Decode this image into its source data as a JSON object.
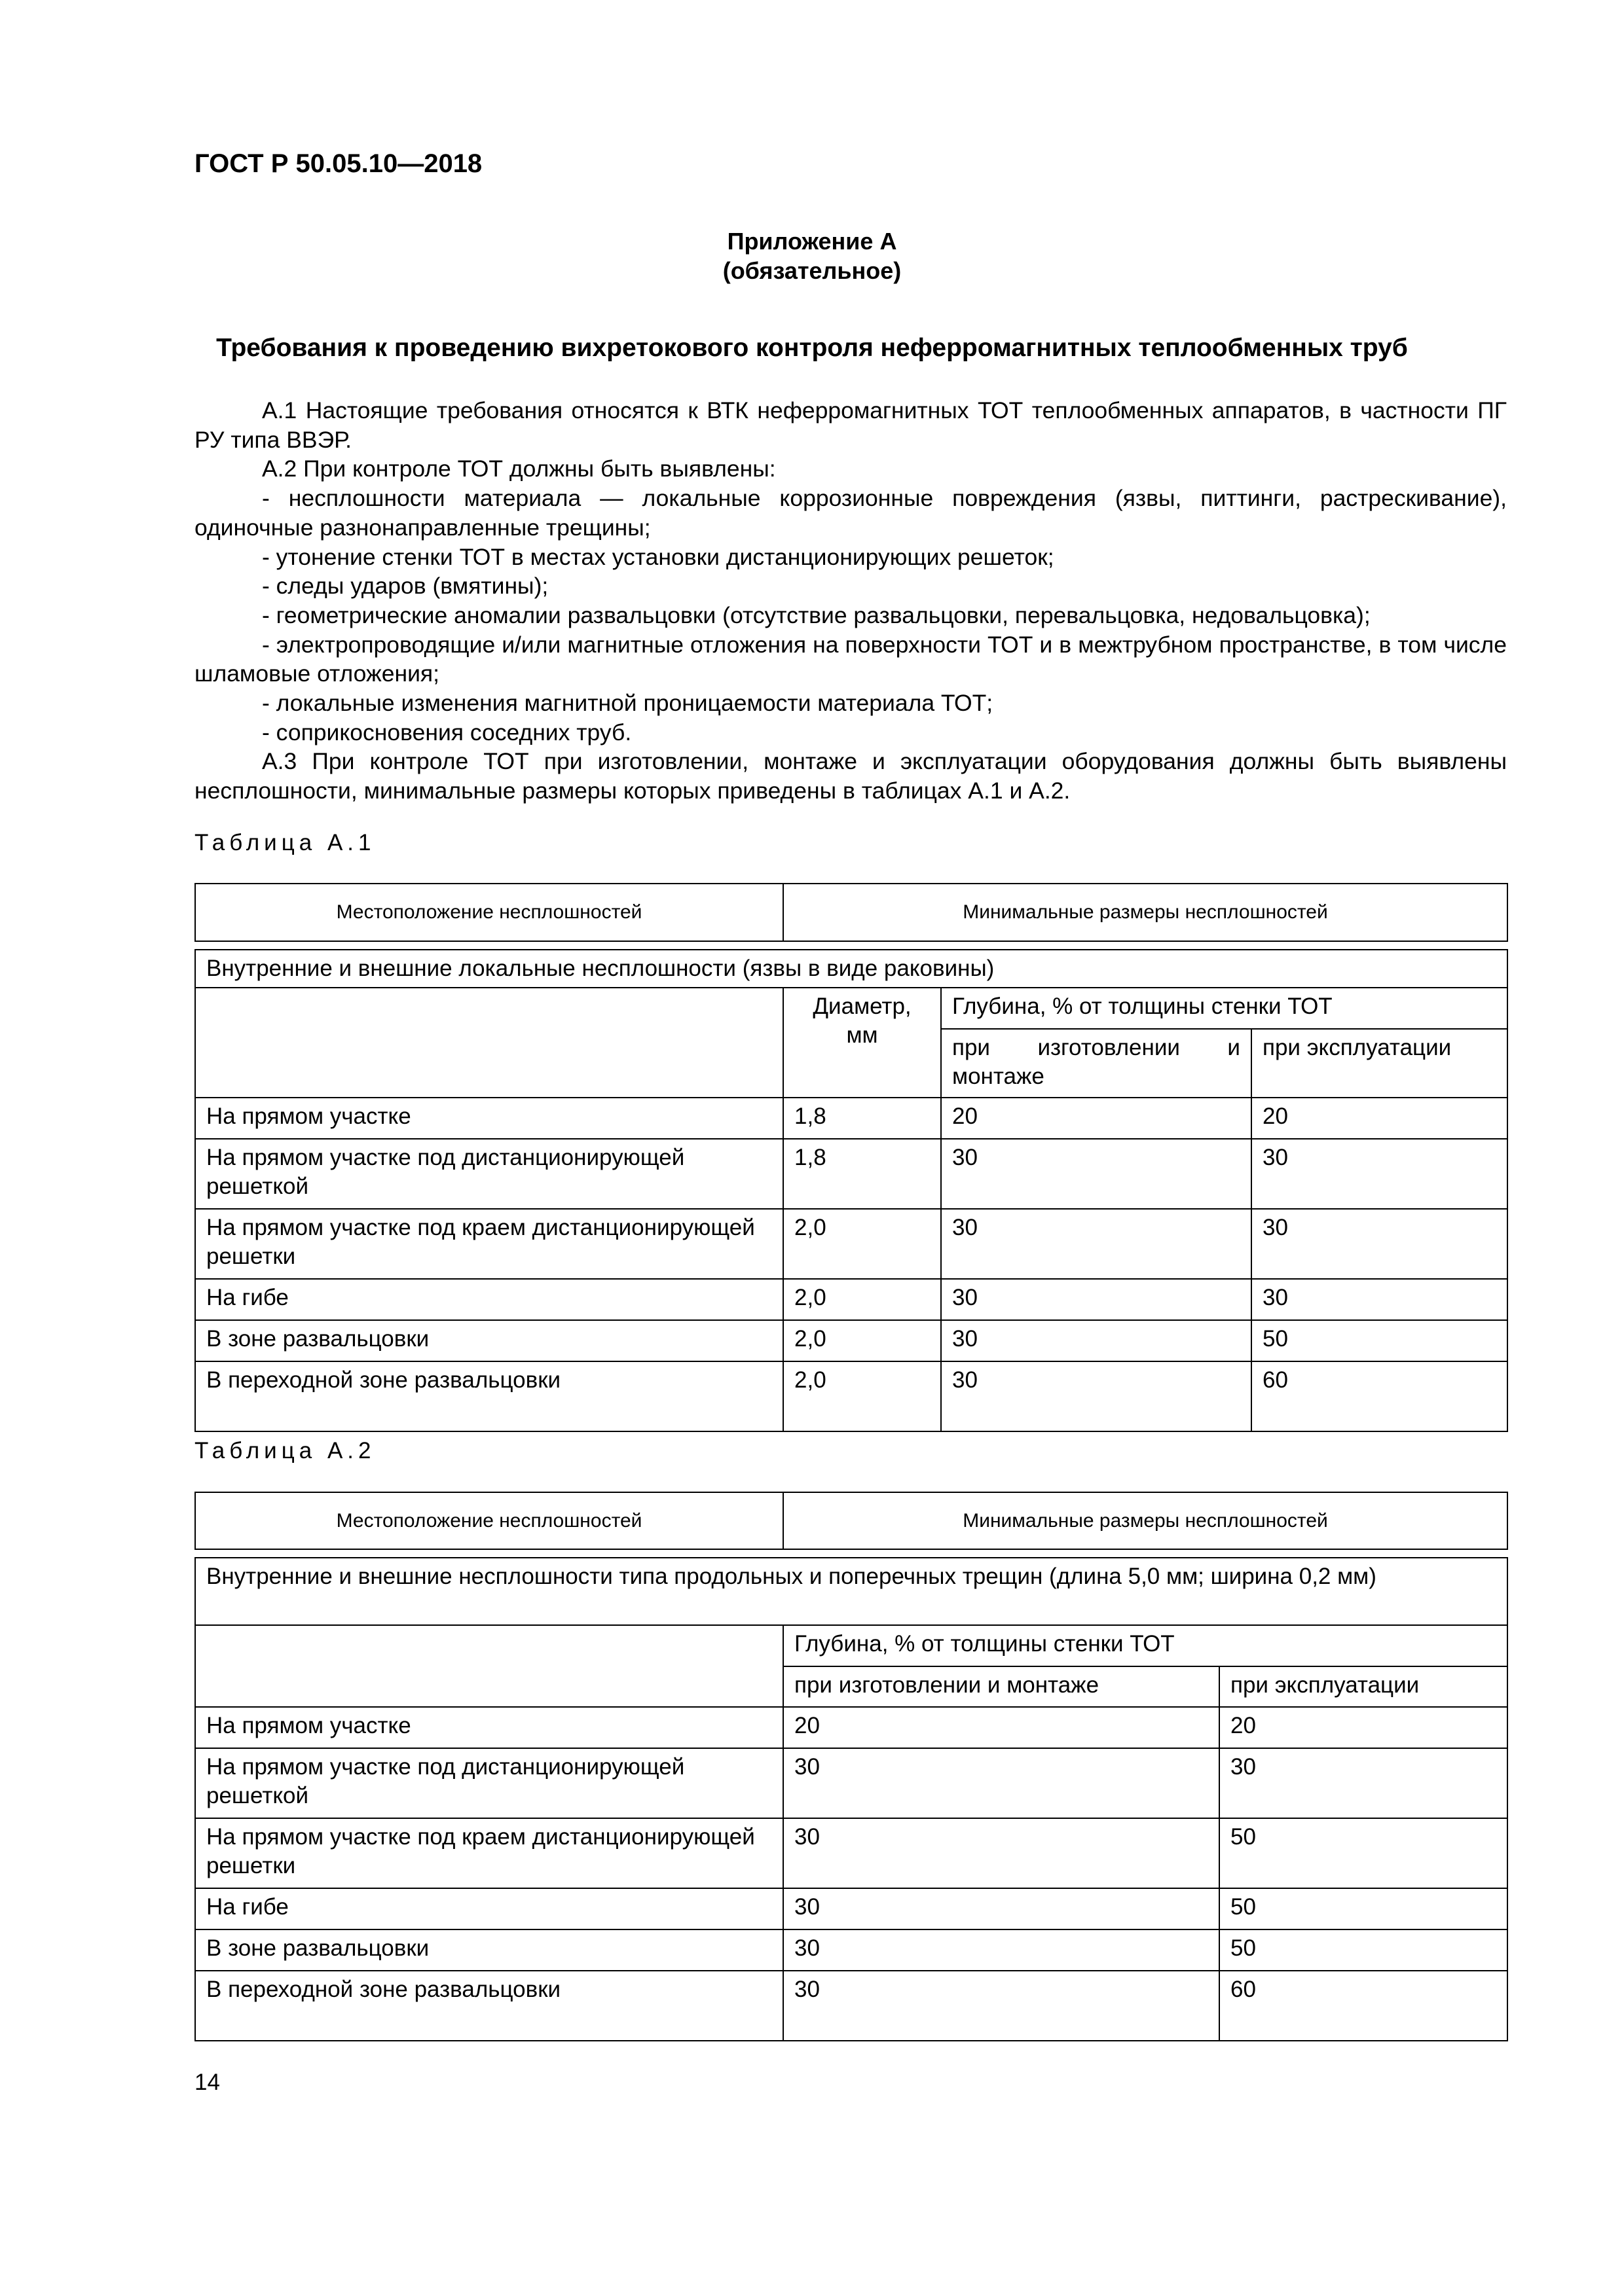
{
  "header": {
    "doc_id": "ГОСТ Р 50.05.10—2018"
  },
  "appendix": {
    "label": "Приложение А",
    "status": "(обязательное)"
  },
  "title": "Требования к проведению вихретокового контроля неферромагнитных теплообменных труб",
  "paragraphs": [
    "А.1 Настоящие требования относятся к ВТК неферромагнитных ТОТ теплообменных аппаратов, в частности ПГ РУ типа ВВЭР.",
    "А.2 При контроле ТОТ должны быть выявлены:",
    "- несплошности материала — локальные коррозионные повреждения (язвы, питтинги, растрескивание), одиночные разнонаправленные трещины;",
    "- утонение стенки ТОТ в местах установки дистанционирующих решеток;",
    "- следы ударов (вмятины);",
    "- геометрические аномалии развальцовки (отсутствие развальцовки, перевальцовка, недовальцовка);",
    "- электропроводящие и/или магнитные отложения на поверхности ТОТ и в межтрубном пространстве, в том числе шламовые отложения;",
    "- локальные изменения магнитной проницаемости материала ТОТ;",
    "- соприкосновения соседних труб.",
    "А.3 При контроле ТОТ при изготовлении, монтаже и эксплуатации оборудования должны быть выявлены несплошности, минимальные размеры которых приведены в таблицах А.1 и А.2."
  ],
  "table1": {
    "caption": "Таблица А.1",
    "col_location": "Местоположение несплошностей",
    "col_sizes": "Минимальные размеры несплошностей",
    "group": "Внутренние и внешние локальные несплошности (язвы в виде раковины)",
    "diameter": "Диаметр, мм",
    "depth": "Глубина, % от толщины стенки ТОТ",
    "manufacture": "при изготовлении и монтаже",
    "operation": "при эксплуатации",
    "rows": [
      [
        "На прямом участке",
        "1,8",
        "20",
        "20"
      ],
      [
        "На прямом участке под дистанционирующей решеткой",
        "1,8",
        "30",
        "30"
      ],
      [
        "На прямом участке под краем дистанционирующей решетки",
        "2,0",
        "30",
        "30"
      ],
      [
        "На гибе",
        "2,0",
        "30",
        "30"
      ],
      [
        "В зоне развальцовки",
        "2,0",
        "30",
        "50"
      ],
      [
        "В переходной зоне развальцовки",
        "2,0",
        "30",
        "60"
      ]
    ]
  },
  "table2": {
    "caption": "Таблица А.2",
    "col_location": "Местоположение несплошностей",
    "col_sizes": "Минимальные размеры несплошностей",
    "group": "Внутренние и внешние несплошности типа продольных и поперечных трещин (длина 5,0 мм; ширина 0,2 мм)",
    "depth": "Глубина, % от толщины стенки ТОТ",
    "manufacture": "при изготовлении и монтаже",
    "operation": "при эксплуатации",
    "rows": [
      [
        "На прямом участке",
        "20",
        "20"
      ],
      [
        "На прямом участке под дистанционирующей решеткой",
        "30",
        "30"
      ],
      [
        "На прямом участке под краем дистанционирующей решетки",
        "30",
        "50"
      ],
      [
        "На гибе",
        "30",
        "50"
      ],
      [
        "В зоне развальцовки",
        "30",
        "50"
      ],
      [
        "В переходной зоне развальцовки",
        "30",
        "60"
      ]
    ]
  },
  "page_number": "14"
}
